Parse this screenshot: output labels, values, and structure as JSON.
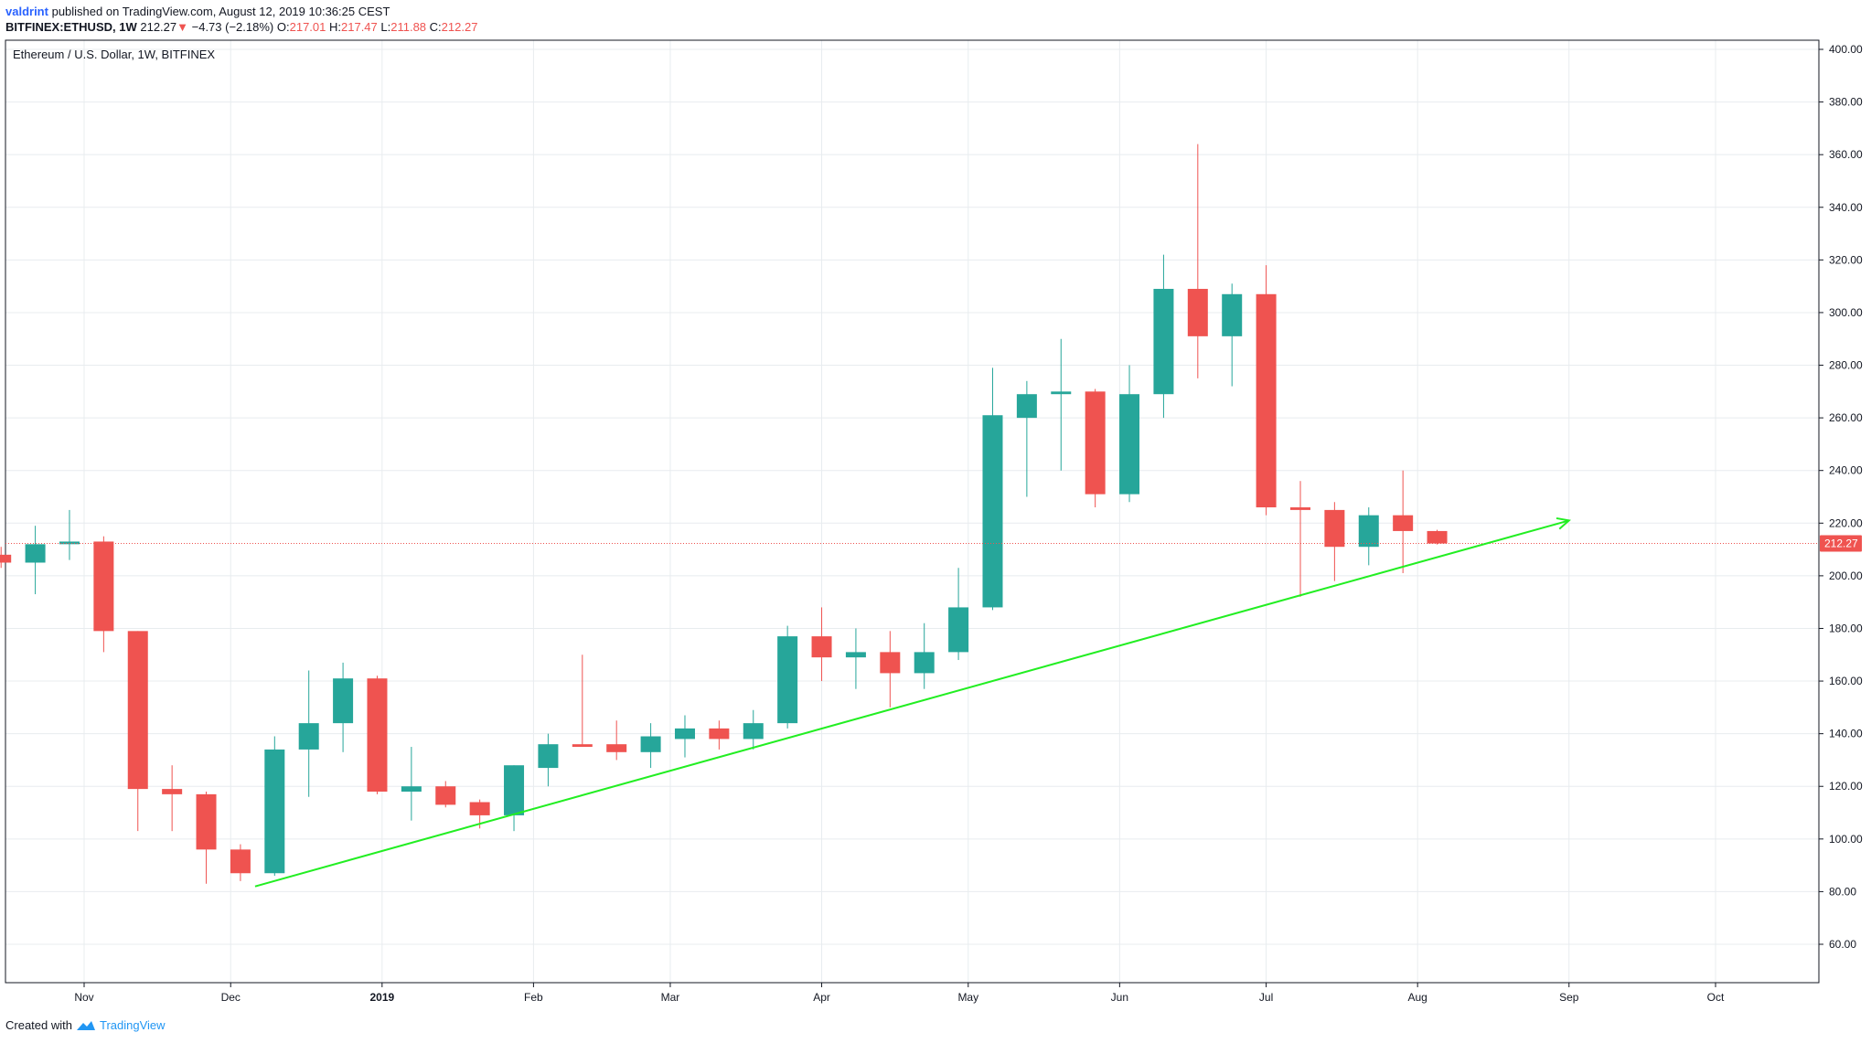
{
  "header": {
    "author": "valdrint",
    "published_text": "published on TradingView.com, August 12, 2019 10:36:25 CEST",
    "symbol": "BITFINEX:ETHUSD, 1W",
    "last": "212.27",
    "arrow": "▼",
    "change": "−4.73 (−2.18%)",
    "o_label": "O:",
    "o_value": "217.01",
    "h_label": "H:",
    "h_value": "217.47",
    "l_label": "L:",
    "l_value": "211.88",
    "c_label": "C:",
    "c_value": "212.27"
  },
  "footer": {
    "created_with": "Created with",
    "brand": "TradingView",
    "logo_icon": "tradingview-logo-icon"
  },
  "colors": {
    "up": "#26a69a",
    "down": "#ef5350",
    "grid": "#e8ecef",
    "trendline": "#22ee22",
    "price_line": "#ef5350",
    "axis_text": "#131722",
    "author": "#2962ff",
    "brand": "#2196f3"
  },
  "chart_data": {
    "type": "candlestick",
    "title": "Ethereum / U.S. Dollar, 1W, BITFINEX",
    "xlabel": "",
    "ylabel": "",
    "ylim": [
      45,
      405
    ],
    "grid": true,
    "x_ticks": [
      "Nov",
      "Dec",
      "2019",
      "Feb",
      "Mar",
      "Apr",
      "May",
      "Jun",
      "Jul",
      "Aug",
      "Sep",
      "Oct"
    ],
    "x_tick_dates": [
      "2018-11-01",
      "2018-12-01",
      "2019-01-01",
      "2019-02-01",
      "2019-03-01",
      "2019-04-01",
      "2019-05-01",
      "2019-06-01",
      "2019-07-01",
      "2019-08-01",
      "2019-09-01",
      "2019-10-01"
    ],
    "y_ticks": [
      "60.00",
      "80.00",
      "100.00",
      "120.00",
      "140.00",
      "160.00",
      "180.00",
      "200.00",
      "220.00",
      "240.00",
      "260.00",
      "280.00",
      "300.00",
      "320.00",
      "340.00",
      "360.00",
      "380.00",
      "400.00"
    ],
    "last_price": 212.27,
    "last_price_label": "212.27",
    "candles": [
      {
        "date": "2018-10-15",
        "o": 208,
        "h": 211,
        "l": 203,
        "c": 205
      },
      {
        "date": "2018-10-22",
        "o": 205,
        "h": 219,
        "l": 193,
        "c": 212
      },
      {
        "date": "2018-10-29",
        "o": 212,
        "h": 225,
        "l": 206,
        "c": 213
      },
      {
        "date": "2018-11-05",
        "o": 213,
        "h": 215,
        "l": 171,
        "c": 179
      },
      {
        "date": "2018-11-12",
        "o": 179,
        "h": 179,
        "l": 103,
        "c": 119
      },
      {
        "date": "2018-11-19",
        "o": 119,
        "h": 128,
        "l": 103,
        "c": 117
      },
      {
        "date": "2018-11-26",
        "o": 117,
        "h": 118,
        "l": 83,
        "c": 96
      },
      {
        "date": "2018-12-03",
        "o": 96,
        "h": 98,
        "l": 84,
        "c": 87
      },
      {
        "date": "2018-12-10",
        "o": 87,
        "h": 139,
        "l": 86,
        "c": 134
      },
      {
        "date": "2018-12-17",
        "o": 134,
        "h": 164,
        "l": 116,
        "c": 144
      },
      {
        "date": "2018-12-24",
        "o": 144,
        "h": 167,
        "l": 133,
        "c": 161
      },
      {
        "date": "2018-12-31",
        "o": 161,
        "h": 162,
        "l": 117,
        "c": 118
      },
      {
        "date": "2019-01-07",
        "o": 118,
        "h": 135,
        "l": 107,
        "c": 120
      },
      {
        "date": "2019-01-14",
        "o": 120,
        "h": 122,
        "l": 112,
        "c": 113
      },
      {
        "date": "2019-01-21",
        "o": 114,
        "h": 115,
        "l": 104,
        "c": 109
      },
      {
        "date": "2019-01-28",
        "o": 109,
        "h": 128,
        "l": 103,
        "c": 128
      },
      {
        "date": "2019-02-04",
        "o": 127,
        "h": 140,
        "l": 120,
        "c": 136
      },
      {
        "date": "2019-02-11",
        "o": 136,
        "h": 170,
        "l": 135,
        "c": 135
      },
      {
        "date": "2019-02-18",
        "o": 136,
        "h": 145,
        "l": 130,
        "c": 133
      },
      {
        "date": "2019-02-25",
        "o": 133,
        "h": 144,
        "l": 127,
        "c": 139
      },
      {
        "date": "2019-03-04",
        "o": 138,
        "h": 147,
        "l": 131,
        "c": 142
      },
      {
        "date": "2019-03-11",
        "o": 142,
        "h": 145,
        "l": 134,
        "c": 138
      },
      {
        "date": "2019-03-18",
        "o": 138,
        "h": 149,
        "l": 134,
        "c": 144
      },
      {
        "date": "2019-03-25",
        "o": 144,
        "h": 181,
        "l": 142,
        "c": 177
      },
      {
        "date": "2019-04-01",
        "o": 177,
        "h": 188,
        "l": 160,
        "c": 169
      },
      {
        "date": "2019-04-08",
        "o": 169,
        "h": 180,
        "l": 157,
        "c": 171
      },
      {
        "date": "2019-04-15",
        "o": 171,
        "h": 179,
        "l": 150,
        "c": 163
      },
      {
        "date": "2019-04-22",
        "o": 163,
        "h": 182,
        "l": 157,
        "c": 171
      },
      {
        "date": "2019-04-29",
        "o": 171,
        "h": 203,
        "l": 168,
        "c": 188
      },
      {
        "date": "2019-05-06",
        "o": 188,
        "h": 279,
        "l": 187,
        "c": 261
      },
      {
        "date": "2019-05-13",
        "o": 260,
        "h": 274,
        "l": 230,
        "c": 269
      },
      {
        "date": "2019-05-20",
        "o": 269,
        "h": 290,
        "l": 240,
        "c": 270
      },
      {
        "date": "2019-05-27",
        "o": 270,
        "h": 271,
        "l": 226,
        "c": 231
      },
      {
        "date": "2019-06-03",
        "o": 231,
        "h": 280,
        "l": 228,
        "c": 269
      },
      {
        "date": "2019-06-10",
        "o": 269,
        "h": 322,
        "l": 260,
        "c": 309
      },
      {
        "date": "2019-06-17",
        "o": 309,
        "h": 364,
        "l": 275,
        "c": 291
      },
      {
        "date": "2019-06-24",
        "o": 291,
        "h": 311,
        "l": 272,
        "c": 307
      },
      {
        "date": "2019-07-01",
        "o": 307,
        "h": 318,
        "l": 223,
        "c": 226
      },
      {
        "date": "2019-07-08",
        "o": 226,
        "h": 236,
        "l": 192,
        "c": 225
      },
      {
        "date": "2019-07-15",
        "o": 225,
        "h": 228,
        "l": 198,
        "c": 211
      },
      {
        "date": "2019-07-22",
        "o": 211,
        "h": 226,
        "l": 204,
        "c": 223
      },
      {
        "date": "2019-07-29",
        "o": 223,
        "h": 240,
        "l": 201,
        "c": 217
      },
      {
        "date": "2019-08-05",
        "o": 217,
        "h": 217.47,
        "l": 211.88,
        "c": 212.27
      }
    ],
    "trendline": {
      "from": {
        "date": "2018-12-06",
        "value": 82
      },
      "to": {
        "date": "2019-09-01",
        "value": 221
      },
      "arrow": true
    }
  }
}
